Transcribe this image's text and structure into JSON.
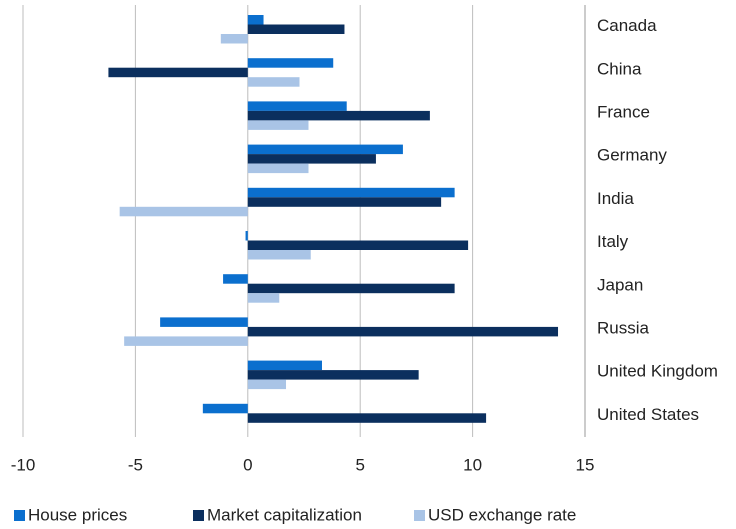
{
  "chart_data": {
    "type": "hbar",
    "categories": [
      "Canada",
      "China",
      "France",
      "Germany",
      "India",
      "Italy",
      "Japan",
      "Russia",
      "United Kingdom",
      "United States"
    ],
    "series": [
      {
        "name": "House prices",
        "color": "#0b6fce",
        "values": [
          0.7,
          3.8,
          4.4,
          6.9,
          9.2,
          -0.1,
          -1.1,
          -3.9,
          3.3,
          -2.0
        ]
      },
      {
        "name": "Market capitalization",
        "color": "#0b2f5e",
        "values": [
          4.3,
          -6.2,
          8.1,
          5.7,
          8.6,
          9.8,
          9.2,
          13.8,
          7.6,
          10.6
        ]
      },
      {
        "name": "USD exchange rate",
        "color": "#a9c4e6",
        "values": [
          -1.2,
          2.3,
          2.7,
          2.7,
          -5.7,
          2.8,
          1.4,
          -5.5,
          1.7,
          0
        ]
      }
    ],
    "xlim": [
      -10,
      15
    ],
    "xticks": [
      -10,
      -5,
      0,
      5,
      10,
      15
    ],
    "grid": true,
    "legend": "bottom"
  }
}
